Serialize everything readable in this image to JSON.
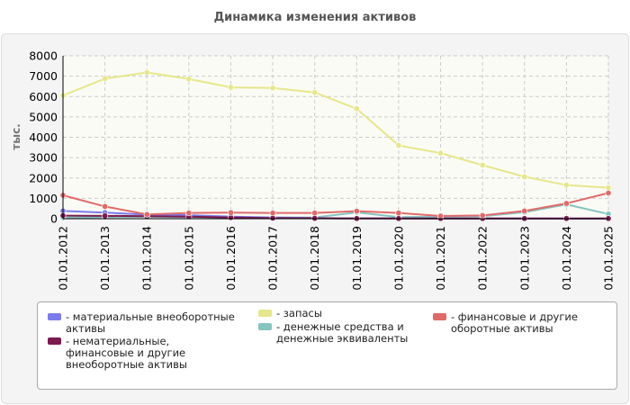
{
  "chart_data": {
    "type": "line",
    "title": "Динамика изменения активов",
    "ylabel": "тыс.",
    "xlabel": "",
    "ylim": [
      0,
      8000
    ],
    "yticks": [
      0,
      1000,
      2000,
      3000,
      4000,
      5000,
      6000,
      7000,
      8000
    ],
    "grid": true,
    "legend_position": "bottom",
    "categories": [
      "01.01.2012",
      "01.01.2013",
      "01.01.2014",
      "01.01.2015",
      "01.01.2016",
      "01.01.2017",
      "01.01.2018",
      "01.01.2019",
      "01.01.2020",
      "01.01.2021",
      "01.01.2022",
      "01.01.2023",
      "01.01.2024",
      "01.01.2025"
    ],
    "series": [
      {
        "name": "- материальные внеоборотные активы",
        "color": "#7b7bea",
        "values": [
          380,
          300,
          200,
          170,
          100,
          60,
          30,
          20,
          20,
          10,
          10,
          10,
          5,
          5
        ]
      },
      {
        "name": "- нематериальные, финансовые и другие внеоборотные активы",
        "color": "#7a1a4f",
        "values": [
          150,
          140,
          120,
          100,
          60,
          30,
          20,
          10,
          10,
          10,
          10,
          10,
          10,
          10
        ]
      },
      {
        "name": "- запасы",
        "color": "#e6e68c",
        "values": [
          6050,
          6880,
          7180,
          6860,
          6450,
          6420,
          6200,
          5400,
          3600,
          3220,
          2630,
          2060,
          1650,
          1520
        ]
      },
      {
        "name": "- денежные средства и денежные эквиваленты",
        "color": "#86c4c0",
        "values": [
          50,
          80,
          90,
          80,
          60,
          60,
          60,
          310,
          80,
          100,
          120,
          320,
          700,
          230
        ]
      },
      {
        "name": "- финансовые и другие оборотные активы",
        "color": "#e06a6a",
        "values": [
          1150,
          600,
          210,
          280,
          300,
          280,
          280,
          370,
          280,
          130,
          160,
          380,
          750,
          1260
        ]
      }
    ]
  }
}
